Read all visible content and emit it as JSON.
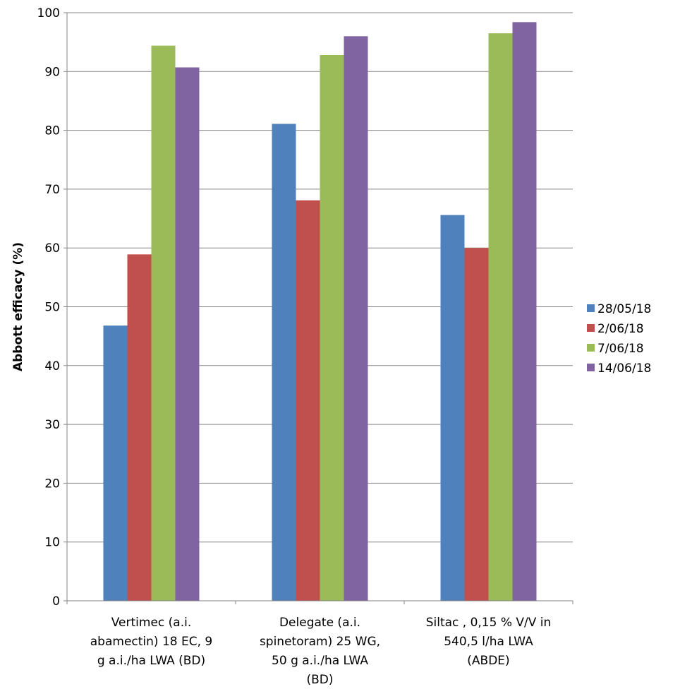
{
  "chart_data": {
    "type": "bar",
    "title": "",
    "xlabel": "",
    "ylabel": "Abbott efficacy (%)",
    "ylim": [
      0,
      100
    ],
    "yticks": [
      0,
      10,
      20,
      30,
      40,
      50,
      60,
      70,
      80,
      90,
      100
    ],
    "grid": true,
    "legend_position": "right",
    "categories": [
      [
        "Vertimec (a.i.",
        "abamectin) 18 EC, 9",
        "g a.i./ha LWA (BD)"
      ],
      [
        "Delegate (a.i.",
        "spinetoram) 25 WG,",
        "50 g a.i./ha LWA",
        "(BD)"
      ],
      [
        "Siltac , 0,15 % V/V in",
        "540,5 l/ha LWA",
        "(ABDE)"
      ]
    ],
    "series": [
      {
        "name": "28/05/18",
        "color": "#4f81bd",
        "values": [
          46.8,
          81.1,
          65.6
        ]
      },
      {
        "name": "2/06/18",
        "color": "#c0504d",
        "values": [
          58.9,
          68.1,
          60.0
        ]
      },
      {
        "name": "7/06/18",
        "color": "#9bbb59",
        "values": [
          94.4,
          92.8,
          96.5
        ]
      },
      {
        "name": "14/06/18",
        "color": "#8064a2",
        "values": [
          90.7,
          96.0,
          98.4
        ]
      }
    ]
  }
}
